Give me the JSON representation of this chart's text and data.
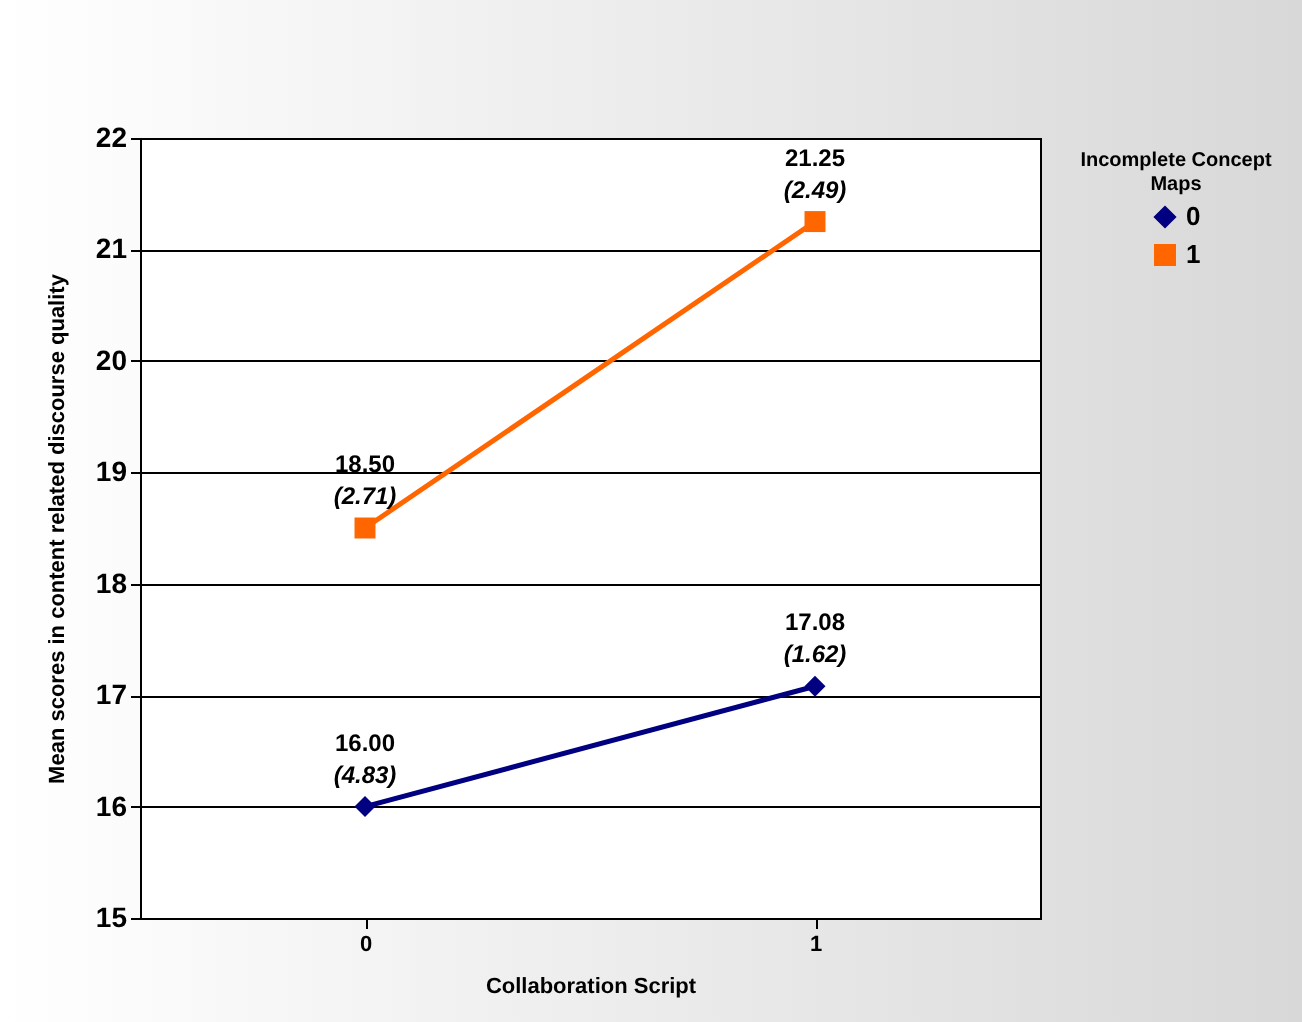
{
  "chart_data": {
    "type": "line",
    "xlabel": "Collaboration Script",
    "ylabel": "Mean scores in content related discourse quality",
    "legend_title": "Incomplete Concept Maps",
    "categories": [
      "0",
      "1"
    ],
    "series": [
      {
        "name": "0",
        "color": "#000080",
        "marker": "diamond",
        "values": [
          16.0,
          17.08
        ],
        "value_labels": [
          "16.00",
          "17.08"
        ]
      },
      {
        "name": "1",
        "color": "#ff6600",
        "marker": "square",
        "values": [
          18.5,
          21.25
        ],
        "value_labels": [
          "18.50",
          "21.25"
        ]
      }
    ],
    "annotations": [
      {
        "text": "(4.83)",
        "x": "0",
        "y": 16.0
      },
      {
        "text": "(1.62)",
        "x": "1",
        "y": 17.08
      },
      {
        "text": "(2.71)",
        "x": "0",
        "y": 18.5
      },
      {
        "text": "(2.49)",
        "x": "1",
        "y": 21.25
      }
    ],
    "ylim": [
      15,
      22
    ],
    "yticks": [
      15,
      16,
      17,
      18,
      19,
      20,
      21,
      22
    ],
    "grid": "y",
    "legend": "right"
  }
}
